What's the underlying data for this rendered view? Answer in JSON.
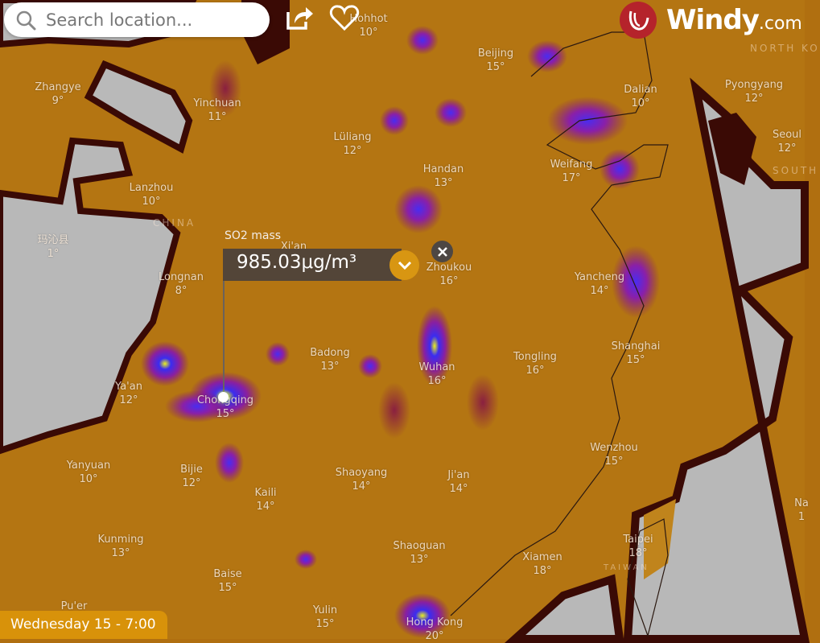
{
  "search": {
    "placeholder": "Search location..."
  },
  "toolbar": {
    "share_icon": "share-icon",
    "favorite_icon": "heart-icon"
  },
  "brand": {
    "name": "Windy",
    "suffix": ".com",
    "color": "#b5232b"
  },
  "picker": {
    "layer_label": "SO2 mass",
    "value": "985.03μg/m³",
    "accent": "#d89612"
  },
  "timeline": {
    "current": "Wednesday 15 - 7:00"
  },
  "countries": {
    "china": "CHINA",
    "north_korea": "NORTH KO",
    "south_korea": "SOUTH",
    "taiwan": "TAIWAN"
  },
  "cities": [
    {
      "name": "Hohhot",
      "temp": "10°"
    },
    {
      "name": "Zhangye",
      "temp": "9°"
    },
    {
      "name": "Yinchuan",
      "temp": "11°"
    },
    {
      "name": "Lüliang",
      "temp": "12°"
    },
    {
      "name": "Beijing",
      "temp": "15°"
    },
    {
      "name": "Dalian",
      "temp": "10°"
    },
    {
      "name": "Pyongyang",
      "temp": "12°"
    },
    {
      "name": "Seoul",
      "temp": "12°"
    },
    {
      "name": "Handan",
      "temp": "13°"
    },
    {
      "name": "Weifang",
      "temp": "17°"
    },
    {
      "name": "Lanzhou",
      "temp": "10°"
    },
    {
      "name": "玛沁县",
      "temp": "1°"
    },
    {
      "name": "Xi'an",
      "temp": ""
    },
    {
      "name": "Longnan",
      "temp": "8°"
    },
    {
      "name": "Zhoukou",
      "temp": "16°"
    },
    {
      "name": "Yancheng",
      "temp": "14°"
    },
    {
      "name": "Badong",
      "temp": "13°"
    },
    {
      "name": "Ya'an",
      "temp": "12°"
    },
    {
      "name": "Chongqing",
      "temp": "15°"
    },
    {
      "name": "Wuhan",
      "temp": "16°"
    },
    {
      "name": "Tongling",
      "temp": "16°"
    },
    {
      "name": "Shanghai",
      "temp": "15°"
    },
    {
      "name": "Yanyuan",
      "temp": "10°"
    },
    {
      "name": "Bijie",
      "temp": "12°"
    },
    {
      "name": "Kaili",
      "temp": "14°"
    },
    {
      "name": "Shaoyang",
      "temp": "14°"
    },
    {
      "name": "Ji'an",
      "temp": "14°"
    },
    {
      "name": "Wenzhou",
      "temp": "15°"
    },
    {
      "name": "Kunming",
      "temp": "13°"
    },
    {
      "name": "Shaoguan",
      "temp": "13°"
    },
    {
      "name": "Xiamen",
      "temp": "18°"
    },
    {
      "name": "Taipei",
      "temp": "18°"
    },
    {
      "name": "Baise",
      "temp": "15°"
    },
    {
      "name": "Yulin",
      "temp": "15°"
    },
    {
      "name": "Pu'er",
      "temp": ""
    },
    {
      "name": "Hong Kong",
      "temp": "20°"
    },
    {
      "name": "Na",
      "temp": "1"
    }
  ]
}
